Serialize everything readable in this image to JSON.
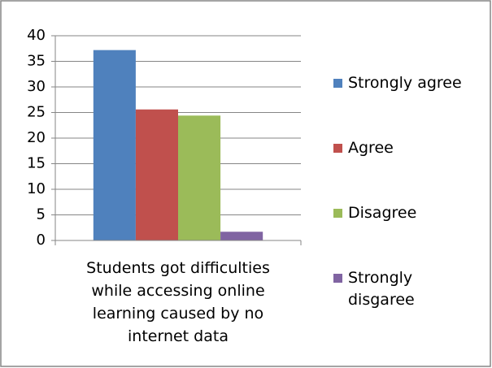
{
  "chart_data": {
    "type": "bar",
    "categories": [
      "Students got difficulties while accessing online learning caused by no internet data"
    ],
    "series": [
      {
        "name": "Strongly agree",
        "color": "#4f81bd",
        "values": [
          37.2
        ]
      },
      {
        "name": "Agree",
        "color": "#c0504d",
        "values": [
          25.6
        ]
      },
      {
        "name": "Disagree",
        "color": "#9bbb59",
        "values": [
          24.4
        ]
      },
      {
        "name": "Strongly disgaree",
        "color": "#8064a2",
        "values": [
          1.7
        ]
      }
    ],
    "ylim": [
      0,
      40
    ],
    "yticks": [
      0,
      5,
      10,
      15,
      20,
      25,
      30,
      35,
      40
    ],
    "grid": true,
    "legend": "right"
  }
}
